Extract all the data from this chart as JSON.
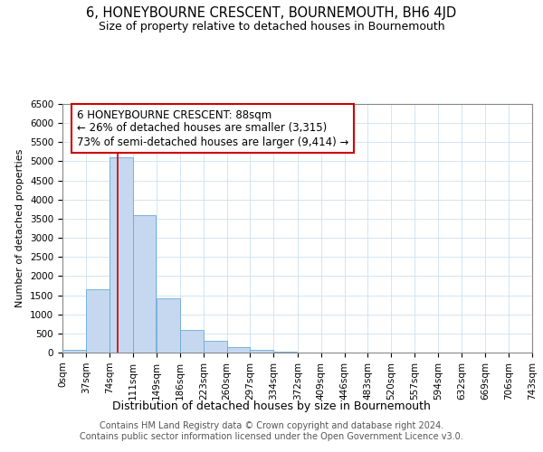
{
  "title": "6, HONEYBOURNE CRESCENT, BOURNEMOUTH, BH6 4JD",
  "subtitle": "Size of property relative to detached houses in Bournemouth",
  "xlabel": "Distribution of detached houses by size in Bournemouth",
  "ylabel": "Number of detached properties",
  "footer_line1": "Contains HM Land Registry data © Crown copyright and database right 2024.",
  "footer_line2": "Contains public sector information licensed under the Open Government Licence v3.0.",
  "annotation_line1": "6 HONEYBOURNE CRESCENT: 88sqm",
  "annotation_line2": "← 26% of detached houses are smaller (3,315)",
  "annotation_line3": "73% of semi-detached houses are larger (9,414) →",
  "red_line_x": 88,
  "bar_edges": [
    0,
    37,
    74,
    111,
    149,
    186,
    223,
    260,
    297,
    334,
    372,
    409,
    446,
    483,
    520,
    557,
    594,
    632,
    669,
    706,
    743
  ],
  "bar_heights": [
    65,
    1650,
    5100,
    3600,
    1420,
    580,
    300,
    150,
    75,
    30,
    10,
    5,
    0,
    0,
    0,
    0,
    0,
    0,
    0,
    0
  ],
  "bar_color": "#c5d8f0",
  "bar_edge_color": "#6aaad4",
  "red_line_color": "#cc0000",
  "grid_color": "#cce0f0",
  "background_color": "#ffffff",
  "annotation_box_color": "#ffffff",
  "annotation_box_edge": "#cc0000",
  "ylim": [
    0,
    6500
  ],
  "yticks": [
    0,
    500,
    1000,
    1500,
    2000,
    2500,
    3000,
    3500,
    4000,
    4500,
    5000,
    5500,
    6000,
    6500
  ],
  "xlim_max": 743,
  "title_fontsize": 10.5,
  "subtitle_fontsize": 9,
  "xlabel_fontsize": 9,
  "ylabel_fontsize": 8,
  "tick_fontsize": 7.5,
  "annotation_fontsize": 8.5,
  "footer_fontsize": 7
}
